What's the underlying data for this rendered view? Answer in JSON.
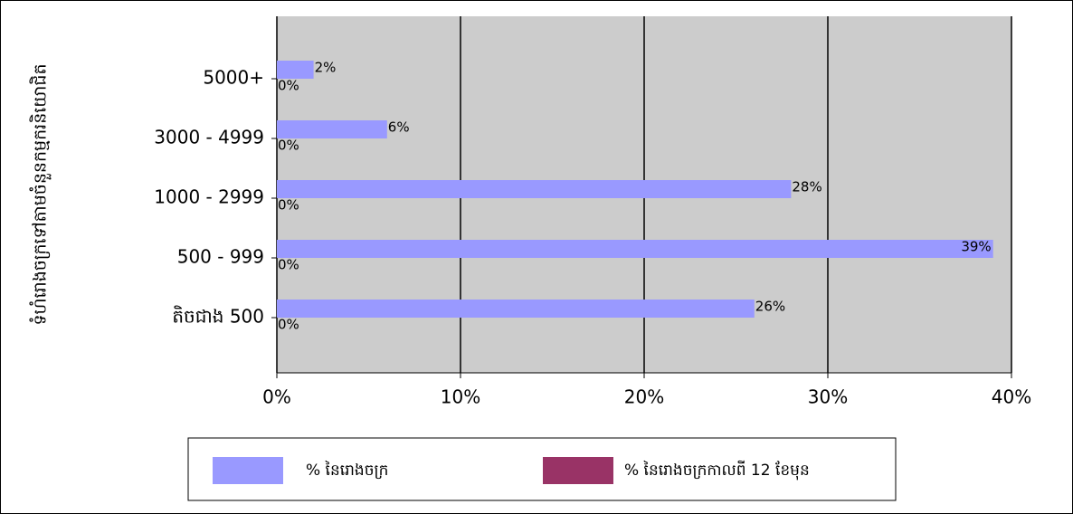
{
  "chart_data": {
    "type": "hbar",
    "y_axis_label": "ទំហំរោងចក្រទៅតាមចំនួនកម្មករនិយោជិត",
    "categories": [
      "5000+",
      "3000 - 4999",
      "1000 - 2999",
      "500 - 999",
      "តិចជាង 500"
    ],
    "series": [
      {
        "name": "% នៃរោងចក្រ",
        "color": "#9999ff",
        "values": [
          2,
          6,
          28,
          39,
          26
        ],
        "value_labels": [
          "2%",
          "6%",
          "28%",
          "39%",
          "26%"
        ]
      },
      {
        "name": "% នៃរោងចក្រកាលពី 12 ខែមុន",
        "color": "#993366",
        "values": [
          0,
          0,
          0,
          0,
          0
        ],
        "value_labels": [
          "0%",
          "0%",
          "0%",
          "0%",
          "0%"
        ]
      }
    ],
    "xlim": [
      0,
      40
    ],
    "xticks": [
      {
        "value": 0,
        "label": "0%"
      },
      {
        "value": 10,
        "label": "10%"
      },
      {
        "value": 20,
        "label": "20%"
      },
      {
        "value": 30,
        "label": "30%"
      },
      {
        "value": 40,
        "label": "40%"
      }
    ],
    "grid": true,
    "legend": "bottom"
  }
}
